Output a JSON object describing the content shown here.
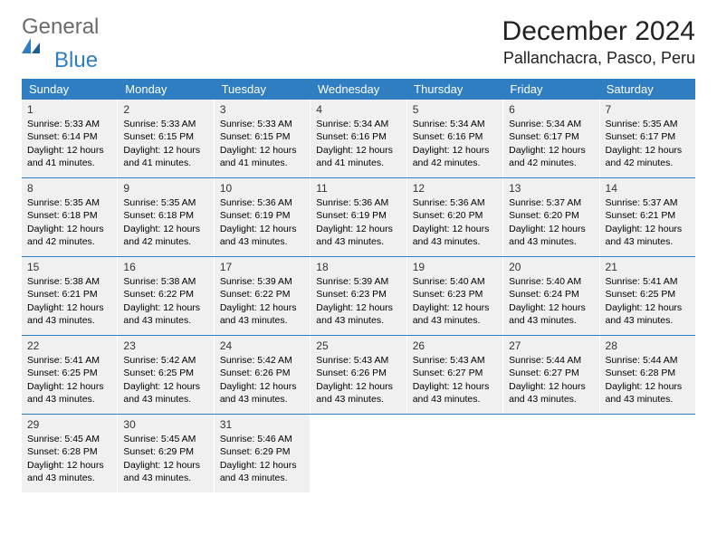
{
  "logo": {
    "text1": "General",
    "text2": "Blue"
  },
  "title": "December 2024",
  "location": "Pallanchacra, Pasco, Peru",
  "colors": {
    "header_bg": "#2f7ec2",
    "header_text": "#ffffff",
    "cell_bg": "#f0f0f0",
    "border": "#2f7ec2",
    "logo_gray": "#6b6b6b",
    "logo_blue": "#2f7ec2"
  },
  "weekdays": [
    "Sunday",
    "Monday",
    "Tuesday",
    "Wednesday",
    "Thursday",
    "Friday",
    "Saturday"
  ],
  "calendar": {
    "type": "table",
    "first_weekday_index": 0,
    "days_in_month": 31,
    "days": [
      {
        "n": 1,
        "sunrise": "5:33 AM",
        "sunset": "6:14 PM",
        "daylight": "12 hours and 41 minutes."
      },
      {
        "n": 2,
        "sunrise": "5:33 AM",
        "sunset": "6:15 PM",
        "daylight": "12 hours and 41 minutes."
      },
      {
        "n": 3,
        "sunrise": "5:33 AM",
        "sunset": "6:15 PM",
        "daylight": "12 hours and 41 minutes."
      },
      {
        "n": 4,
        "sunrise": "5:34 AM",
        "sunset": "6:16 PM",
        "daylight": "12 hours and 41 minutes."
      },
      {
        "n": 5,
        "sunrise": "5:34 AM",
        "sunset": "6:16 PM",
        "daylight": "12 hours and 42 minutes."
      },
      {
        "n": 6,
        "sunrise": "5:34 AM",
        "sunset": "6:17 PM",
        "daylight": "12 hours and 42 minutes."
      },
      {
        "n": 7,
        "sunrise": "5:35 AM",
        "sunset": "6:17 PM",
        "daylight": "12 hours and 42 minutes."
      },
      {
        "n": 8,
        "sunrise": "5:35 AM",
        "sunset": "6:18 PM",
        "daylight": "12 hours and 42 minutes."
      },
      {
        "n": 9,
        "sunrise": "5:35 AM",
        "sunset": "6:18 PM",
        "daylight": "12 hours and 42 minutes."
      },
      {
        "n": 10,
        "sunrise": "5:36 AM",
        "sunset": "6:19 PM",
        "daylight": "12 hours and 43 minutes."
      },
      {
        "n": 11,
        "sunrise": "5:36 AM",
        "sunset": "6:19 PM",
        "daylight": "12 hours and 43 minutes."
      },
      {
        "n": 12,
        "sunrise": "5:36 AM",
        "sunset": "6:20 PM",
        "daylight": "12 hours and 43 minutes."
      },
      {
        "n": 13,
        "sunrise": "5:37 AM",
        "sunset": "6:20 PM",
        "daylight": "12 hours and 43 minutes."
      },
      {
        "n": 14,
        "sunrise": "5:37 AM",
        "sunset": "6:21 PM",
        "daylight": "12 hours and 43 minutes."
      },
      {
        "n": 15,
        "sunrise": "5:38 AM",
        "sunset": "6:21 PM",
        "daylight": "12 hours and 43 minutes."
      },
      {
        "n": 16,
        "sunrise": "5:38 AM",
        "sunset": "6:22 PM",
        "daylight": "12 hours and 43 minutes."
      },
      {
        "n": 17,
        "sunrise": "5:39 AM",
        "sunset": "6:22 PM",
        "daylight": "12 hours and 43 minutes."
      },
      {
        "n": 18,
        "sunrise": "5:39 AM",
        "sunset": "6:23 PM",
        "daylight": "12 hours and 43 minutes."
      },
      {
        "n": 19,
        "sunrise": "5:40 AM",
        "sunset": "6:23 PM",
        "daylight": "12 hours and 43 minutes."
      },
      {
        "n": 20,
        "sunrise": "5:40 AM",
        "sunset": "6:24 PM",
        "daylight": "12 hours and 43 minutes."
      },
      {
        "n": 21,
        "sunrise": "5:41 AM",
        "sunset": "6:25 PM",
        "daylight": "12 hours and 43 minutes."
      },
      {
        "n": 22,
        "sunrise": "5:41 AM",
        "sunset": "6:25 PM",
        "daylight": "12 hours and 43 minutes."
      },
      {
        "n": 23,
        "sunrise": "5:42 AM",
        "sunset": "6:25 PM",
        "daylight": "12 hours and 43 minutes."
      },
      {
        "n": 24,
        "sunrise": "5:42 AM",
        "sunset": "6:26 PM",
        "daylight": "12 hours and 43 minutes."
      },
      {
        "n": 25,
        "sunrise": "5:43 AM",
        "sunset": "6:26 PM",
        "daylight": "12 hours and 43 minutes."
      },
      {
        "n": 26,
        "sunrise": "5:43 AM",
        "sunset": "6:27 PM",
        "daylight": "12 hours and 43 minutes."
      },
      {
        "n": 27,
        "sunrise": "5:44 AM",
        "sunset": "6:27 PM",
        "daylight": "12 hours and 43 minutes."
      },
      {
        "n": 28,
        "sunrise": "5:44 AM",
        "sunset": "6:28 PM",
        "daylight": "12 hours and 43 minutes."
      },
      {
        "n": 29,
        "sunrise": "5:45 AM",
        "sunset": "6:28 PM",
        "daylight": "12 hours and 43 minutes."
      },
      {
        "n": 30,
        "sunrise": "5:45 AM",
        "sunset": "6:29 PM",
        "daylight": "12 hours and 43 minutes."
      },
      {
        "n": 31,
        "sunrise": "5:46 AM",
        "sunset": "6:29 PM",
        "daylight": "12 hours and 43 minutes."
      }
    ]
  },
  "labels": {
    "sunrise": "Sunrise:",
    "sunset": "Sunset:",
    "daylight": "Daylight:"
  }
}
